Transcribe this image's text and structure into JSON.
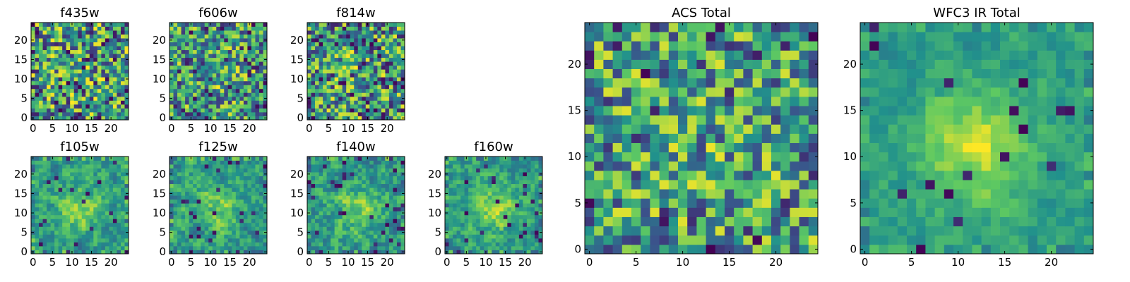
{
  "colormap": {
    "name": "viridis",
    "stops": [
      "#440154",
      "#3b528b",
      "#21918c",
      "#5ec962",
      "#fde725"
    ]
  },
  "chart_data": [
    {
      "type": "heatmap",
      "title": "f435w",
      "grid_size": 25,
      "xlim": [
        0,
        24
      ],
      "ylim": [
        0,
        24
      ],
      "xticks": [
        0,
        5,
        10,
        15,
        20
      ],
      "yticks": [
        0,
        5,
        10,
        15,
        20
      ],
      "noise": 0.9,
      "blob": 0.05,
      "seed": 11,
      "dark_frac": 0.07
    },
    {
      "type": "heatmap",
      "title": "f606w",
      "grid_size": 25,
      "xlim": [
        0,
        24
      ],
      "ylim": [
        0,
        24
      ],
      "xticks": [
        0,
        5,
        10,
        15,
        20
      ],
      "yticks": [
        0,
        5,
        10,
        15,
        20
      ],
      "noise": 0.8,
      "blob": 0.12,
      "seed": 23,
      "dark_frac": 0.06
    },
    {
      "type": "heatmap",
      "title": "f814w",
      "grid_size": 25,
      "xlim": [
        0,
        24
      ],
      "ylim": [
        0,
        24
      ],
      "xticks": [
        0,
        5,
        10,
        15,
        20
      ],
      "yticks": [
        0,
        5,
        10,
        15,
        20
      ],
      "noise": 0.85,
      "blob": 0.1,
      "seed": 37,
      "dark_frac": 0.09
    },
    {
      "type": "heatmap",
      "title": "f105w",
      "grid_size": 25,
      "xlim": [
        0,
        24
      ],
      "ylim": [
        0,
        24
      ],
      "xticks": [
        0,
        5,
        10,
        15,
        20
      ],
      "yticks": [
        0,
        5,
        10,
        15,
        20
      ],
      "noise": 0.55,
      "blob": 0.45,
      "seed": 41,
      "dark_frac": 0.04
    },
    {
      "type": "heatmap",
      "title": "f125w",
      "grid_size": 25,
      "xlim": [
        0,
        24
      ],
      "ylim": [
        0,
        24
      ],
      "xticks": [
        0,
        5,
        10,
        15,
        20
      ],
      "yticks": [
        0,
        5,
        10,
        15,
        20
      ],
      "noise": 0.6,
      "blob": 0.4,
      "seed": 53,
      "dark_frac": 0.05
    },
    {
      "type": "heatmap",
      "title": "f140w",
      "grid_size": 25,
      "xlim": [
        0,
        24
      ],
      "ylim": [
        0,
        24
      ],
      "xticks": [
        0,
        5,
        10,
        15,
        20
      ],
      "yticks": [
        0,
        5,
        10,
        15,
        20
      ],
      "noise": 0.6,
      "blob": 0.4,
      "seed": 67,
      "dark_frac": 0.05
    },
    {
      "type": "heatmap",
      "title": "f160w",
      "grid_size": 25,
      "xlim": [
        0,
        24
      ],
      "ylim": [
        0,
        24
      ],
      "xticks": [
        0,
        5,
        10,
        15,
        20
      ],
      "yticks": [
        0,
        5,
        10,
        15,
        20
      ],
      "noise": 0.55,
      "blob": 0.45,
      "seed": 79,
      "dark_frac": 0.04
    },
    {
      "type": "heatmap",
      "title": "ACS Total",
      "grid_size": 25,
      "xlim": [
        0,
        24
      ],
      "ylim": [
        0,
        24
      ],
      "xticks": [
        0,
        5,
        10,
        15,
        20
      ],
      "yticks": [
        0,
        5,
        10,
        15,
        20
      ],
      "noise": 0.8,
      "blob": 0.1,
      "seed": 97,
      "dark_frac": 0.04
    },
    {
      "type": "heatmap",
      "title": "WFC3 IR Total",
      "grid_size": 25,
      "xlim": [
        0,
        24
      ],
      "ylim": [
        0,
        24
      ],
      "xticks": [
        0,
        5,
        10,
        15,
        20
      ],
      "yticks": [
        0,
        5,
        10,
        15,
        20
      ],
      "noise": 0.35,
      "blob": 0.65,
      "seed": 101,
      "dark_frac": 0.02
    }
  ]
}
